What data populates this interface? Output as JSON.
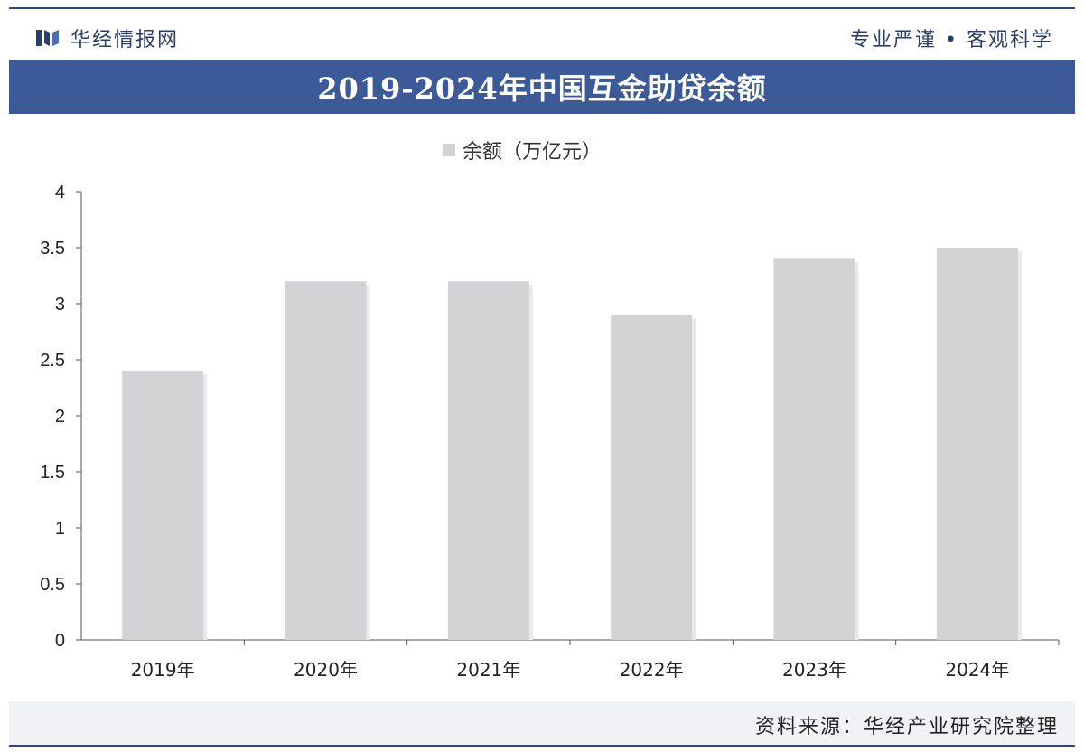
{
  "header": {
    "brand_name": "华经情报网",
    "slogan": "专业严谨 • 客观科学"
  },
  "footer": {
    "source": "资料来源：华经产业研究院整理"
  },
  "colors": {
    "title_bar": "#3d5a98",
    "bar": "#d3d3d5",
    "brand": "#2b3e6b"
  },
  "chart_data": {
    "type": "bar",
    "title": "2019-2024年中国互金助贷余额",
    "categories": [
      "2019年",
      "2020年",
      "2021年",
      "2022年",
      "2023年",
      "2024年"
    ],
    "series": [
      {
        "name": "余额（万亿元）",
        "values": [
          2.4,
          3.2,
          3.2,
          2.9,
          3.4,
          3.5
        ]
      }
    ],
    "ylim": [
      0,
      4
    ],
    "yticks": [
      "0",
      "0.5",
      "1",
      "1.5",
      "2",
      "2.5",
      "3",
      "3.5",
      "4"
    ],
    "legend_position": "top-center",
    "grid": false
  }
}
